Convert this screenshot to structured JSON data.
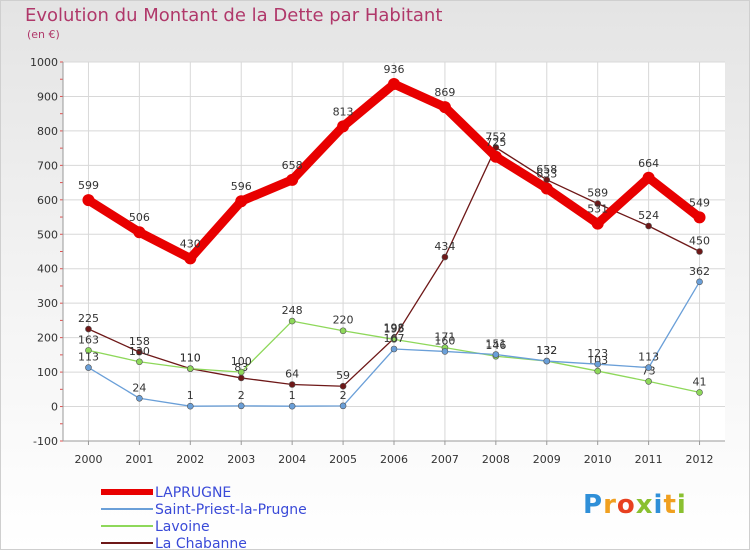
{
  "title": "Evolution du Montant de la Dette par Habitant",
  "subtitle": "(en €)",
  "logo": {
    "letters": [
      "P",
      "r",
      "o",
      "x",
      "i",
      "t",
      "i"
    ],
    "colors": [
      "#2f8fd8",
      "#f0a020",
      "#e84020",
      "#8ac030",
      "#2f8fd8",
      "#f0a020",
      "#8ac030"
    ]
  },
  "chart_data": {
    "type": "line",
    "categories": [
      "2000",
      "2001",
      "2002",
      "2003",
      "2004",
      "2005",
      "2006",
      "2007",
      "2008",
      "2009",
      "2010",
      "2011",
      "2012"
    ],
    "ylim": [
      -100,
      1000
    ],
    "yticks": [
      "-100",
      "0",
      "100",
      "200",
      "300",
      "400",
      "500",
      "600",
      "700",
      "800",
      "900",
      "1000"
    ],
    "grid": true,
    "legend_position": "bottom-left",
    "series": [
      {
        "name": "La Chabanne",
        "color": "#6e1818",
        "emphasis": "thin",
        "values": [
          225,
          158,
          110,
          83,
          64,
          59,
          198,
          434,
          752,
          658,
          589,
          524,
          450
        ],
        "labels": [
          "225",
          "158",
          "110",
          "83",
          "64",
          "59",
          "198",
          "434",
          "752",
          "658",
          "589",
          "524",
          "450"
        ]
      },
      {
        "name": "Lavoine",
        "color": "#8ed85a",
        "emphasis": "thin",
        "values": [
          163,
          130,
          110,
          100,
          248,
          220,
          195,
          171,
          146,
          132,
          103,
          73,
          41
        ],
        "labels": [
          "163",
          "130",
          "110",
          "100",
          "248",
          "220",
          "195",
          "171",
          "146",
          "132",
          "103",
          "73",
          "41"
        ]
      },
      {
        "name": "Saint-Priest-la-Prugne",
        "color": "#6a9fd8",
        "emphasis": "thin",
        "values": [
          113,
          24,
          1,
          2,
          1,
          2,
          167,
          160,
          151,
          132,
          123,
          113,
          362
        ],
        "labels": [
          "113",
          "24",
          "1",
          "2",
          "1",
          "2",
          "167",
          "160",
          "151",
          "132",
          "123",
          "113",
          "362"
        ]
      },
      {
        "name": "LAPRUGNE",
        "color": "#e80000",
        "emphasis": "thick",
        "values": [
          599,
          506,
          430,
          596,
          658,
          813,
          936,
          869,
          725,
          633,
          531,
          664,
          549
        ],
        "labels": [
          "599",
          "506",
          "430",
          "596",
          "658",
          "813",
          "936",
          "869",
          "725",
          "633",
          "531",
          "664",
          "549"
        ]
      }
    ],
    "legend_order": [
      "LAPRUGNE",
      "Saint-Priest-la-Prugne",
      "Lavoine",
      "La Chabanne"
    ]
  }
}
